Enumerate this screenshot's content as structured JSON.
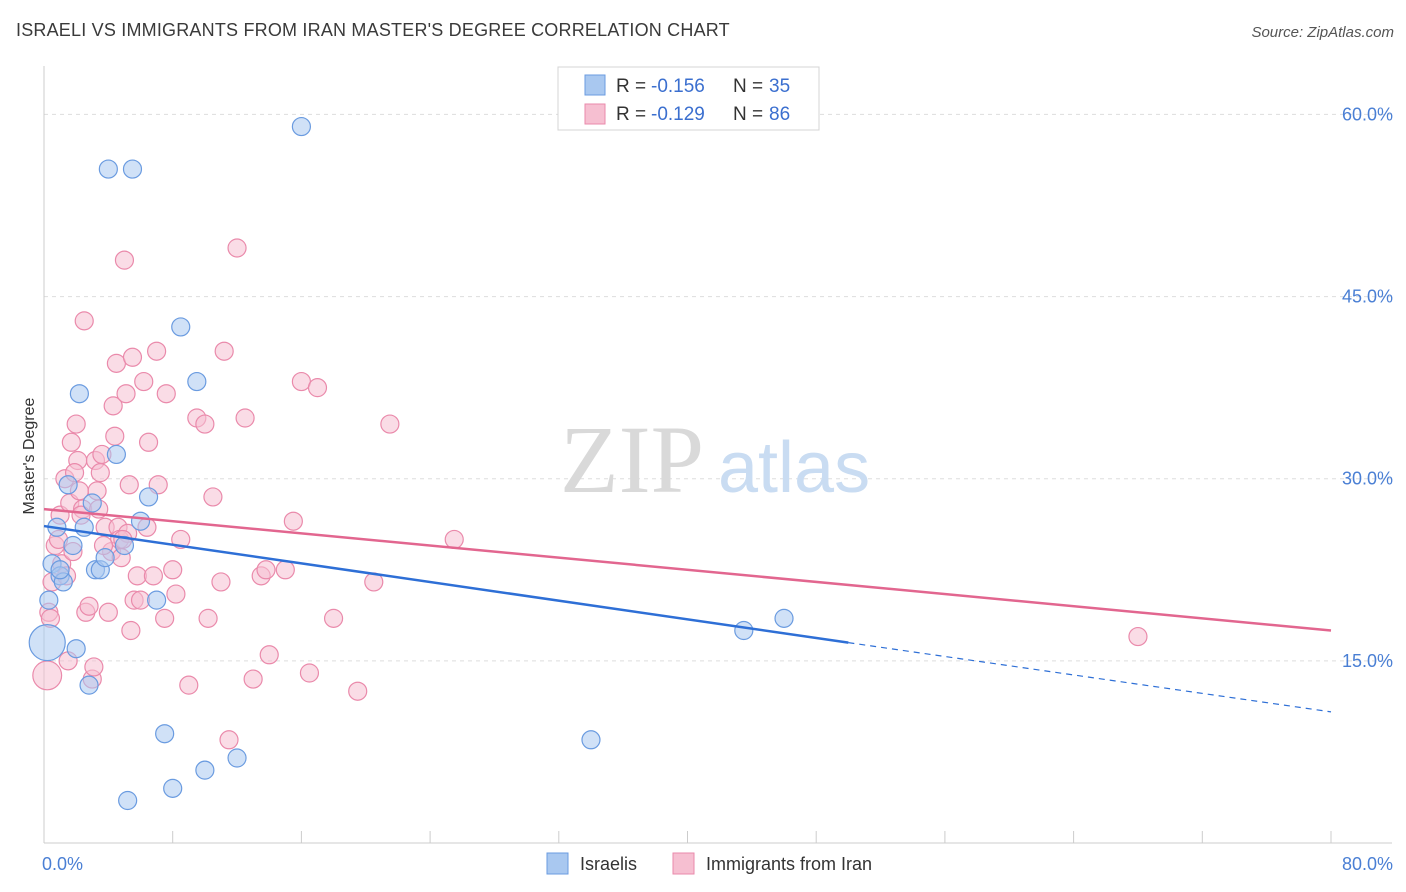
{
  "title": "ISRAELI VS IMMIGRANTS FROM IRAN MASTER'S DEGREE CORRELATION CHART",
  "source": "Source: ZipAtlas.com",
  "watermark": {
    "zip": "ZIP",
    "atlas": "atlas"
  },
  "colors": {
    "blue_fill": "#a9c8f0",
    "blue_stroke": "#6a9be0",
    "blue_line": "#2e6fd6",
    "pink_fill": "#f6bfd1",
    "pink_stroke": "#ea8aab",
    "pink_line": "#e2668f",
    "grid": "#dddddd",
    "tick_text": "#4a7fd4"
  },
  "legend": {
    "rows": [
      {
        "r_label": "R = ",
        "r_value": "-0.156",
        "n_label": "N = ",
        "n_value": "35",
        "series": "blue"
      },
      {
        "r_label": "R = ",
        "r_value": "-0.129",
        "n_label": "N = ",
        "n_value": "86",
        "series": "pink"
      }
    ]
  },
  "bottom_legend": [
    "Israelis",
    "Immigrants from Iran"
  ],
  "chart_data": {
    "type": "scatter",
    "xlabel": "",
    "ylabel": "Master's Degree",
    "xlim": [
      0,
      80
    ],
    "ylim": [
      0,
      63
    ],
    "x_tick_labels": [
      "0.0%",
      "80.0%"
    ],
    "y_ticks": [
      15,
      30,
      45,
      60
    ],
    "y_tick_labels": [
      "15.0%",
      "30.0%",
      "45.0%",
      "60.0%"
    ],
    "series": [
      {
        "name": "Israelis",
        "color": "blue",
        "trend": {
          "x0": 0,
          "y0": 26.1,
          "x1": 50,
          "y1": 16.5,
          "dash_x1": 80,
          "dash_y1": 10.8
        },
        "points": [
          [
            0.2,
            16.5,
            3
          ],
          [
            0.3,
            20.0,
            1
          ],
          [
            0.5,
            23.0,
            1
          ],
          [
            0.8,
            26.0,
            1
          ],
          [
            1.0,
            22.0,
            1
          ],
          [
            1.2,
            21.5,
            1
          ],
          [
            1.5,
            29.5,
            1
          ],
          [
            1.8,
            24.5,
            1
          ],
          [
            2.0,
            16.0,
            1
          ],
          [
            2.2,
            37.0,
            1
          ],
          [
            2.5,
            26.0,
            1
          ],
          [
            2.8,
            13.0,
            1
          ],
          [
            3.0,
            28.0,
            1
          ],
          [
            3.2,
            22.5,
            1
          ],
          [
            3.5,
            22.5,
            1
          ],
          [
            3.8,
            23.5,
            1
          ],
          [
            4.0,
            55.5,
            1
          ],
          [
            4.5,
            32.0,
            1
          ],
          [
            5.0,
            24.5,
            1
          ],
          [
            5.5,
            55.5,
            1
          ],
          [
            6.0,
            26.5,
            1
          ],
          [
            6.5,
            28.5,
            1
          ],
          [
            7.0,
            20.0,
            1
          ],
          [
            7.5,
            9.0,
            1
          ],
          [
            8.0,
            4.5,
            1
          ],
          [
            8.5,
            42.5,
            1
          ],
          [
            9.5,
            38.0,
            1
          ],
          [
            10.0,
            6.0,
            1
          ],
          [
            12.0,
            7.0,
            1
          ],
          [
            16.0,
            59.0,
            1
          ],
          [
            5.2,
            3.5,
            1
          ],
          [
            34.0,
            8.5,
            1
          ],
          [
            43.5,
            17.5,
            1
          ],
          [
            46.0,
            18.5,
            1
          ],
          [
            1.0,
            22.5,
            1
          ]
        ]
      },
      {
        "name": "Immigrants from Iran",
        "color": "pink",
        "trend": {
          "x0": 0,
          "y0": 27.5,
          "x1": 80,
          "y1": 17.5
        },
        "points": [
          [
            0.2,
            13.8,
            2
          ],
          [
            0.3,
            19.0,
            1
          ],
          [
            0.5,
            21.5,
            1
          ],
          [
            0.7,
            24.5,
            1
          ],
          [
            0.9,
            25.0,
            1
          ],
          [
            1.0,
            27.0,
            1
          ],
          [
            1.1,
            23.0,
            1
          ],
          [
            1.3,
            30.0,
            1
          ],
          [
            1.5,
            15.0,
            1
          ],
          [
            1.6,
            28.0,
            1
          ],
          [
            1.7,
            33.0,
            1
          ],
          [
            1.8,
            24.0,
            1
          ],
          [
            2.0,
            34.5,
            1
          ],
          [
            2.1,
            31.5,
            1
          ],
          [
            2.2,
            29.0,
            1
          ],
          [
            2.4,
            27.5,
            1
          ],
          [
            2.5,
            43.0,
            1
          ],
          [
            2.6,
            19.0,
            1
          ],
          [
            2.8,
            19.5,
            1
          ],
          [
            3.0,
            13.5,
            1
          ],
          [
            3.1,
            14.5,
            1
          ],
          [
            3.2,
            31.5,
            1
          ],
          [
            3.3,
            29.0,
            1
          ],
          [
            3.4,
            27.5,
            1
          ],
          [
            3.5,
            30.5,
            1
          ],
          [
            3.6,
            32.0,
            1
          ],
          [
            3.8,
            26.0,
            1
          ],
          [
            4.0,
            19.0,
            1
          ],
          [
            4.2,
            24.0,
            1
          ],
          [
            4.3,
            36.0,
            1
          ],
          [
            4.4,
            33.5,
            1
          ],
          [
            4.5,
            39.5,
            1
          ],
          [
            4.6,
            26.0,
            1
          ],
          [
            4.7,
            25.0,
            1
          ],
          [
            4.8,
            23.5,
            1
          ],
          [
            5.0,
            48.0,
            1
          ],
          [
            5.1,
            37.0,
            1
          ],
          [
            5.2,
            25.5,
            1
          ],
          [
            5.3,
            29.5,
            1
          ],
          [
            5.4,
            17.5,
            1
          ],
          [
            5.5,
            40.0,
            1
          ],
          [
            5.6,
            20.0,
            1
          ],
          [
            5.8,
            22.0,
            1
          ],
          [
            6.0,
            20.0,
            1
          ],
          [
            6.2,
            38.0,
            1
          ],
          [
            6.5,
            33.0,
            1
          ],
          [
            6.8,
            22.0,
            1
          ],
          [
            7.0,
            40.5,
            1
          ],
          [
            7.1,
            29.5,
            1
          ],
          [
            7.5,
            18.5,
            1
          ],
          [
            7.6,
            37.0,
            1
          ],
          [
            8.0,
            22.5,
            1
          ],
          [
            8.2,
            20.5,
            1
          ],
          [
            8.5,
            25.0,
            1
          ],
          [
            9.0,
            13.0,
            1
          ],
          [
            9.5,
            35.0,
            1
          ],
          [
            10.0,
            34.5,
            1
          ],
          [
            10.2,
            18.5,
            1
          ],
          [
            10.5,
            28.5,
            1
          ],
          [
            11.0,
            21.5,
            1
          ],
          [
            11.2,
            40.5,
            1
          ],
          [
            11.5,
            8.5,
            1
          ],
          [
            12.0,
            49.0,
            1
          ],
          [
            12.5,
            35.0,
            1
          ],
          [
            13.0,
            13.5,
            1
          ],
          [
            13.5,
            22.0,
            1
          ],
          [
            13.8,
            22.5,
            1
          ],
          [
            14.0,
            15.5,
            1
          ],
          [
            15.0,
            22.5,
            1
          ],
          [
            15.5,
            26.5,
            1
          ],
          [
            16.0,
            38.0,
            1
          ],
          [
            16.5,
            14.0,
            1
          ],
          [
            17.0,
            37.5,
            1
          ],
          [
            18.0,
            18.5,
            1
          ],
          [
            19.5,
            12.5,
            1
          ],
          [
            20.5,
            21.5,
            1
          ],
          [
            21.5,
            34.5,
            1
          ],
          [
            25.5,
            25.0,
            1
          ],
          [
            68.0,
            17.0,
            1
          ],
          [
            1.4,
            22.0,
            1
          ],
          [
            2.3,
            27.0,
            1
          ],
          [
            3.7,
            24.5,
            1
          ],
          [
            4.9,
            25.0,
            1
          ],
          [
            6.4,
            26.0,
            1
          ],
          [
            0.4,
            18.5,
            1
          ],
          [
            1.9,
            30.5,
            1
          ]
        ]
      }
    ]
  }
}
